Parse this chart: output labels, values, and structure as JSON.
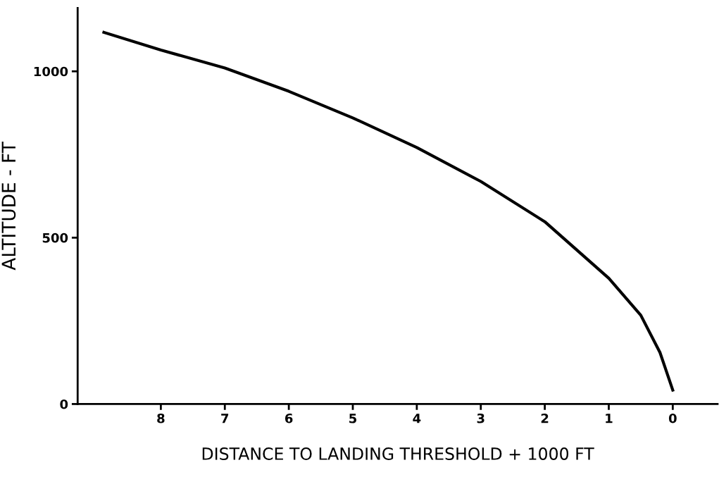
{
  "chart_data": {
    "type": "line",
    "xlabel": "DISTANCE TO LANDING THRESHOLD + 1000 FT",
    "ylabel": "ALTITUDE - FT",
    "x": [
      8.89,
      8,
      7,
      6,
      5,
      4,
      3,
      2,
      1,
      0.5,
      0.2,
      0
    ],
    "series": [
      {
        "color": "#000000",
        "values": [
          1117,
          1064,
          1010,
          940,
          860,
          771,
          669,
          548,
          378,
          267,
          155,
          42
        ]
      }
    ],
    "xlim": [
      9.3,
      -0.7
    ],
    "xticks": [
      8,
      7,
      6,
      5,
      4,
      3,
      2,
      1,
      0
    ],
    "ylim": [
      0,
      1190
    ],
    "yticks": [
      0,
      500,
      1000
    ],
    "grid": false,
    "marker": "none",
    "line_style": "solid"
  }
}
